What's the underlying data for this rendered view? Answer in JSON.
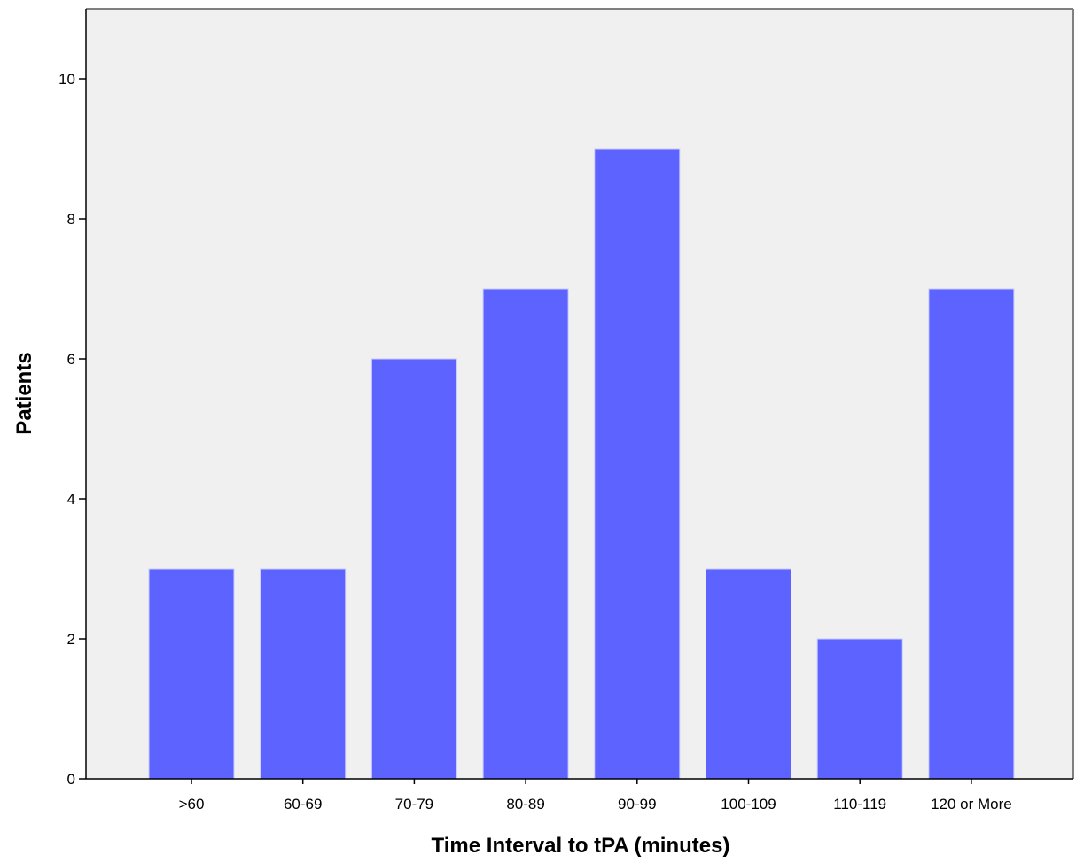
{
  "chart_data": {
    "type": "bar",
    "title": "",
    "xlabel": "Time Interval to tPA (minutes)",
    "ylabel": "Patients",
    "categories": [
      ">60",
      "60-69",
      "70-79",
      "80-89",
      "90-99",
      "100-109",
      "110-119",
      "120 or More"
    ],
    "values": [
      3,
      3,
      6,
      7,
      9,
      3,
      2,
      7
    ],
    "ylim": [
      0,
      11
    ],
    "yticks": [
      0,
      2,
      4,
      6,
      8,
      10
    ],
    "grid": false,
    "legend": "none"
  },
  "colors": {
    "bar": "#5d63ff",
    "bar_edge": "#c9cbff",
    "plot_background": "#f0f0f0",
    "axis": "#000000",
    "frame": "#808080"
  }
}
